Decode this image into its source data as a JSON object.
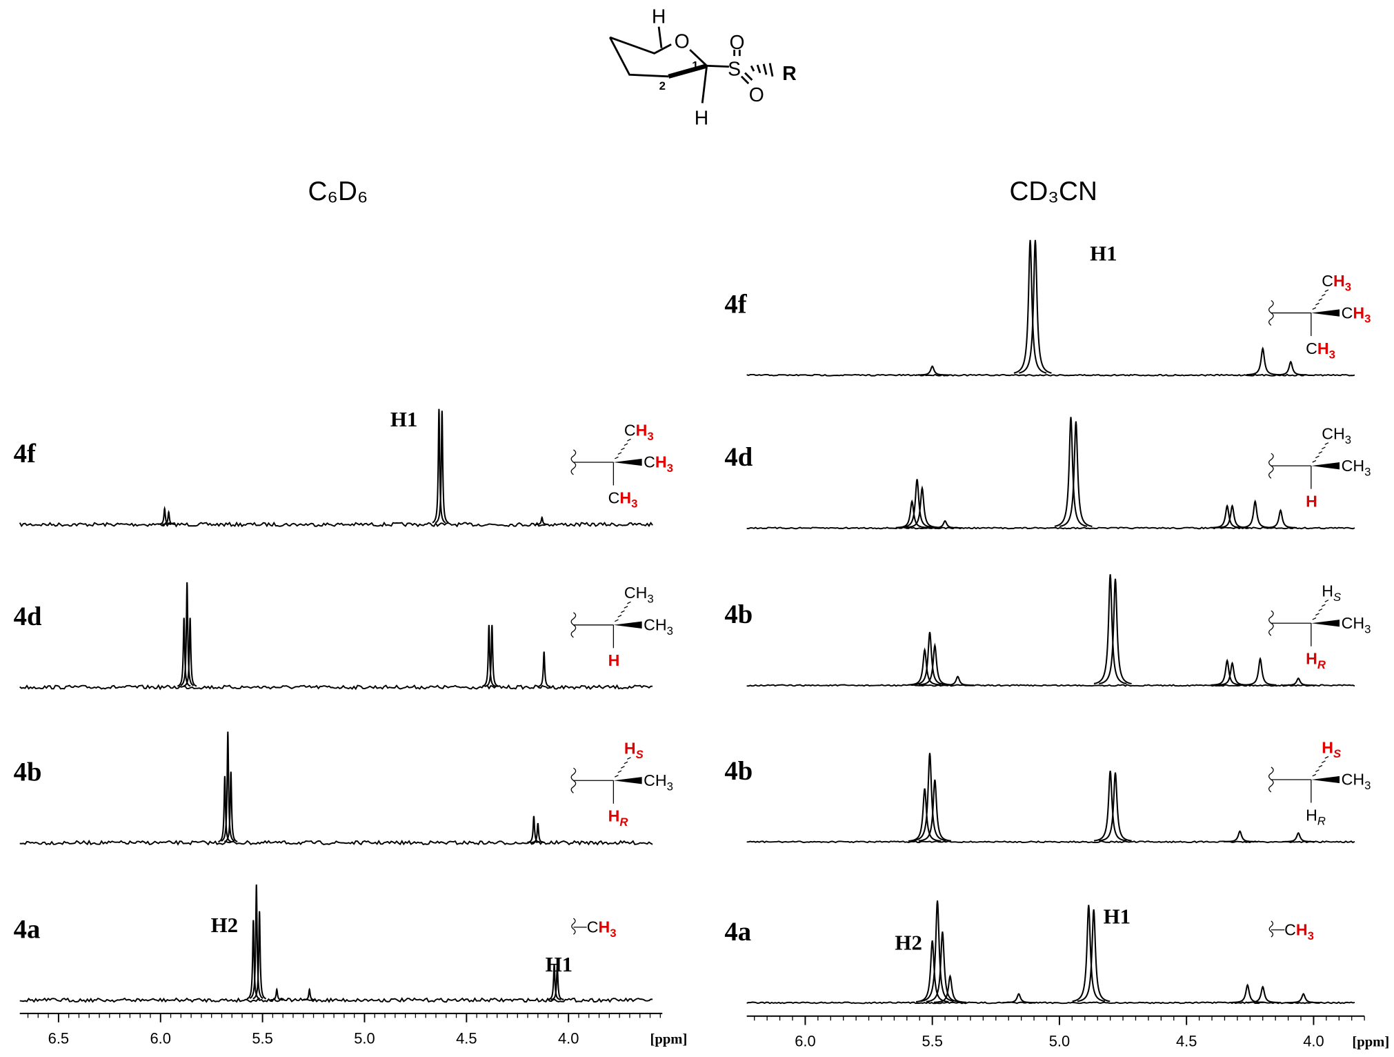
{
  "structure": {
    "labels": [
      "H",
      "O",
      "1",
      "S",
      "O",
      "O",
      "R",
      "2",
      "H"
    ]
  },
  "chart_data": [
    {
      "type": "nmr",
      "title": "C₆D₆",
      "x_label": "[ppm]",
      "color": "#000000",
      "label_color": "#e00000",
      "xlim": [
        6.69,
        3.54
      ],
      "xticks": [
        6.5,
        {
          "value": 6,
          "label": "6.0"
        },
        5.5,
        {
          "value": 5,
          "label": "5.0"
        },
        4.5,
        {
          "value": 4,
          "label": "4.0"
        }
      ],
      "series": [
        {
          "name": "4f",
          "x": [
            5.98,
            5.96,
            4.635,
            4.62,
            4.13
          ],
          "values": [
            18,
            14,
            130,
            128,
            8
          ],
          "annotations": [
            {
              "text": "H1",
              "x": 4.74
            }
          ],
          "group": [
            {
              "base": "C",
              "h": "H",
              "sub": "3",
              "red": true
            },
            {
              "base": "C",
              "h": "H",
              "sub": "3",
              "red": true
            },
            {
              "base": "C",
              "h": "H",
              "sub": "3",
              "red": true
            }
          ]
        },
        {
          "name": "4d",
          "x": [
            5.885,
            5.87,
            5.855,
            4.39,
            4.375,
            4.12
          ],
          "values": [
            78,
            118,
            78,
            70,
            70,
            40
          ],
          "group": [
            {
              "base": "C",
              "h": "H",
              "sub": "3",
              "red": false
            },
            {
              "base": "C",
              "h": "H",
              "sub": "3",
              "red": false
            },
            {
              "h": "H",
              "red": true
            }
          ]
        },
        {
          "name": "4b",
          "x": [
            5.685,
            5.67,
            5.655,
            4.17,
            4.15
          ],
          "values": [
            75,
            125,
            80,
            30,
            22
          ],
          "group": [
            {
              "h": "H",
              "sub": "S",
              "red": true
            },
            {
              "base": "C",
              "h": "H",
              "sub": "3",
              "red": false
            },
            {
              "h": "H",
              "sub": "R",
              "red": true
            }
          ]
        },
        {
          "name": "4a",
          "x": [
            5.545,
            5.53,
            5.515,
            5.43,
            5.27,
            4.07,
            4.055
          ],
          "values": [
            90,
            130,
            100,
            12,
            12,
            40,
            38
          ],
          "annotations": [
            {
              "text": "H2",
              "x": 5.62
            },
            {
              "text": "H1",
              "x": 3.98
            }
          ],
          "group": [
            {
              "base": "C",
              "h": "H",
              "sub": "3",
              "red": true
            }
          ]
        }
      ]
    },
    {
      "type": "nmr",
      "title": "CD₃CN",
      "x_label": "[ppm]",
      "color": "#000000",
      "label_color": "#e00000",
      "xlim": [
        6.23,
        3.8
      ],
      "xticks": [
        {
          "value": 6,
          "label": "6.0"
        },
        5.5,
        {
          "value": 5,
          "label": "5.0"
        },
        4.5,
        {
          "value": 4,
          "label": "4.0"
        }
      ],
      "series": [
        {
          "name": "4f",
          "x": [
            5.5,
            5.115,
            5.095,
            4.2,
            4.09
          ],
          "values": [
            10,
            152,
            152,
            30,
            15
          ],
          "annotations": [
            {
              "text": "H1",
              "x": 4.88
            }
          ],
          "group": [
            {
              "base": "C",
              "h": "H",
              "sub": "3",
              "red": true
            },
            {
              "base": "C",
              "h": "H",
              "sub": "3",
              "red": true
            },
            {
              "base": "C",
              "h": "H",
              "sub": "3",
              "red": true
            }
          ]
        },
        {
          "name": "4d",
          "x": [
            5.58,
            5.56,
            5.54,
            5.45,
            4.955,
            4.935,
            4.34,
            4.32,
            4.23,
            4.13
          ],
          "values": [
            30,
            55,
            45,
            8,
            125,
            120,
            25,
            25,
            30,
            20
          ],
          "group": [
            {
              "base": "C",
              "h": "H",
              "sub": "3",
              "red": false
            },
            {
              "base": "C",
              "h": "H",
              "sub": "3",
              "red": false
            },
            {
              "h": "H",
              "red": true
            }
          ]
        },
        {
          "name": "4b",
          "x": [
            5.53,
            5.51,
            5.49,
            5.4,
            4.8,
            4.78,
            4.34,
            4.32,
            4.21,
            4.06
          ],
          "values": [
            40,
            60,
            45,
            10,
            125,
            120,
            28,
            25,
            30,
            8
          ],
          "group": [
            {
              "h": "H",
              "sub": "S",
              "red": false
            },
            {
              "base": "C",
              "h": "H",
              "sub": "3",
              "red": false
            },
            {
              "h": "H",
              "sub": "R",
              "red": true
            }
          ]
        },
        {
          "name": "4b",
          "x": [
            5.53,
            5.51,
            5.49,
            4.8,
            4.78,
            4.29,
            4.06
          ],
          "values": [
            60,
            100,
            70,
            80,
            78,
            12,
            10
          ],
          "group": [
            {
              "h": "H",
              "sub": "S",
              "red": true
            },
            {
              "base": "C",
              "h": "H",
              "sub": "3",
              "red": false
            },
            {
              "h": "H",
              "sub": "R",
              "red": false
            }
          ]
        },
        {
          "name": "4a",
          "x": [
            5.5,
            5.48,
            5.46,
            5.43,
            5.16,
            4.885,
            4.865,
            4.26,
            4.2,
            4.04
          ],
          "values": [
            70,
            115,
            80,
            30,
            10,
            110,
            105,
            20,
            18,
            10
          ],
          "annotations": [
            {
              "text": "H2",
              "x": 5.54
            },
            {
              "text": "H1",
              "x": 4.72
            }
          ],
          "group": [
            {
              "base": "C",
              "h": "H",
              "sub": "3",
              "red": true
            }
          ]
        }
      ]
    }
  ]
}
